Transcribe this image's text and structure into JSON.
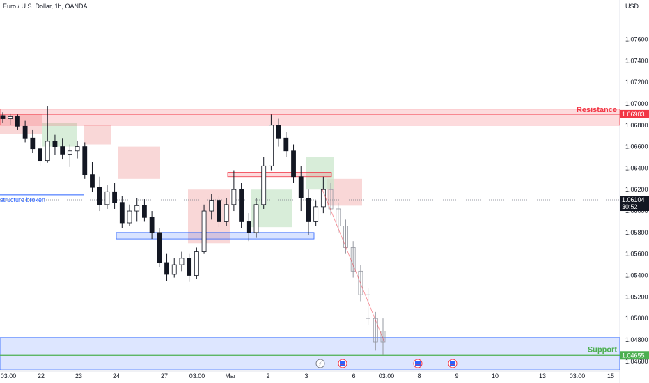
{
  "header": {
    "title": "Euro / U.S. Dollar, 1h, OANDA",
    "currency": "USD"
  },
  "colors": {
    "resistance": "#f23645",
    "support": "#4caf50",
    "zone_blue": "#2962ff",
    "candle": "#131722",
    "cloud_red": "#f7c6c6",
    "cloud_green": "#c8e6c9"
  },
  "chart_data": {
    "type": "candlestick",
    "y_axis": {
      "ticks": [
        1.076,
        1.074,
        1.072,
        1.07,
        1.068,
        1.066,
        1.064,
        1.062,
        1.06,
        1.058,
        1.056,
        1.054,
        1.052,
        1.05,
        1.048,
        1.046
      ],
      "tick_labels": [
        "1.07600",
        "1.07400",
        "1.07200",
        "1.07000",
        "1.06800",
        "1.06600",
        "1.06400",
        "1.06200",
        "1.06000",
        "1.05800",
        "1.05600",
        "1.05400",
        "1.05200",
        "1.05000",
        "1.04800",
        "1.04600"
      ],
      "range": [
        1.0454,
        1.0785
      ]
    },
    "x_axis": {
      "tick_labels": [
        "03:00",
        "22",
        "23",
        "24",
        "27",
        "03:00",
        "Mar",
        "2",
        "3",
        "6",
        "03:00",
        "8",
        "9",
        "10",
        "13",
        "03:00",
        "15"
      ]
    },
    "levels": [
      {
        "label": "Resistance",
        "price": 1.06903,
        "price_label": "1.06903",
        "zone": [
          1.068,
          1.0695
        ]
      },
      {
        "label": "Support",
        "price": 1.04655,
        "price_label": "1.04655",
        "zone": [
          1.0452,
          1.0482
        ]
      }
    ],
    "current_price": {
      "price": 1.06104,
      "label": "1.06104",
      "countdown": "30:52"
    },
    "annotations": [
      {
        "text": "structure broken",
        "price": 1.0615
      },
      {
        "kind": "box",
        "range": [
          1.0577,
          1.0579
        ]
      },
      {
        "kind": "box",
        "range": [
          1.0633,
          1.0636
        ]
      }
    ],
    "candles": [
      [
        1.0689,
        1.0692,
        1.0682,
        1.0686
      ],
      [
        1.0686,
        1.0691,
        1.068,
        1.0688
      ],
      [
        1.0688,
        1.069,
        1.0676,
        1.0679
      ],
      [
        1.0679,
        1.0684,
        1.0664,
        1.0668
      ],
      [
        1.0668,
        1.0676,
        1.0654,
        1.0658
      ],
      [
        1.0658,
        1.0668,
        1.0642,
        1.0647
      ],
      [
        1.0647,
        1.0698,
        1.0645,
        1.0665
      ],
      [
        1.0665,
        1.0671,
        1.0652,
        1.066
      ],
      [
        1.066,
        1.0668,
        1.0648,
        1.0653
      ],
      [
        1.0653,
        1.0662,
        1.0641,
        1.0656
      ],
      [
        1.0656,
        1.0665,
        1.0649,
        1.066
      ],
      [
        1.066,
        1.0664,
        1.063,
        1.0634
      ],
      [
        1.0634,
        1.0646,
        1.0618,
        1.0622
      ],
      [
        1.0622,
        1.0632,
        1.06,
        1.0606
      ],
      [
        1.0606,
        1.0624,
        1.0602,
        1.0618
      ],
      [
        1.0618,
        1.0626,
        1.0602,
        1.0608
      ],
      [
        1.0608,
        1.0614,
        1.0584,
        1.0589
      ],
      [
        1.0589,
        1.0606,
        1.0586,
        1.06
      ],
      [
        1.06,
        1.0612,
        1.059,
        1.0605
      ],
      [
        1.0605,
        1.0611,
        1.059,
        1.0594
      ],
      [
        1.0594,
        1.06,
        1.0574,
        1.058
      ],
      [
        1.058,
        1.0584,
        1.0548,
        1.0552
      ],
      [
        1.0552,
        1.056,
        1.0535,
        1.0541
      ],
      [
        1.0541,
        1.0556,
        1.0538,
        1.055
      ],
      [
        1.055,
        1.0562,
        1.0544,
        1.0556
      ],
      [
        1.0556,
        1.056,
        1.0534,
        1.054
      ],
      [
        1.054,
        1.0566,
        1.0537,
        1.0562
      ],
      [
        1.0562,
        1.0606,
        1.056,
        1.06
      ],
      [
        1.06,
        1.0616,
        1.0592,
        1.061
      ],
      [
        1.061,
        1.0614,
        1.0585,
        1.059
      ],
      [
        1.059,
        1.0612,
        1.0586,
        1.0606
      ],
      [
        1.0606,
        1.0638,
        1.06,
        1.062
      ],
      [
        1.062,
        1.0626,
        1.0584,
        1.059
      ],
      [
        1.059,
        1.0598,
        1.0572,
        1.058
      ],
      [
        1.058,
        1.0612,
        1.0575,
        1.0606
      ],
      [
        1.0606,
        1.065,
        1.0602,
        1.0642
      ],
      [
        1.0642,
        1.069,
        1.0638,
        1.068
      ],
      [
        1.068,
        1.0686,
        1.066,
        1.0668
      ],
      [
        1.0668,
        1.0674,
        1.065,
        1.0656
      ],
      [
        1.0656,
        1.0662,
        1.0626,
        1.0632
      ],
      [
        1.0632,
        1.0642,
        1.06,
        1.0612
      ],
      [
        1.0612,
        1.062,
        1.0578,
        1.059
      ],
      [
        1.059,
        1.061,
        1.0586,
        1.0604
      ],
      [
        1.0604,
        1.0632,
        1.0598,
        1.062
      ],
      [
        1.062,
        1.0626,
        1.0596,
        1.0602
      ],
      [
        1.0602,
        1.0608,
        1.058,
        1.0586
      ],
      [
        1.0586,
        1.0592,
        1.056,
        1.0566
      ],
      [
        1.0566,
        1.0572,
        1.0538,
        1.0544
      ],
      [
        1.0544,
        1.055,
        1.0516,
        1.0522
      ],
      [
        1.0522,
        1.0528,
        1.0494,
        1.05
      ],
      [
        1.05,
        1.0506,
        1.047,
        1.0478
      ],
      [
        1.0478,
        1.05,
        1.0466,
        1.0488
      ]
    ]
  },
  "event_markers": [
    {
      "icon": "flash-icon"
    },
    {
      "icon": "us-flag-icon"
    },
    {
      "icon": "us-flag-icon"
    },
    {
      "icon": "us-flag-icon"
    }
  ]
}
